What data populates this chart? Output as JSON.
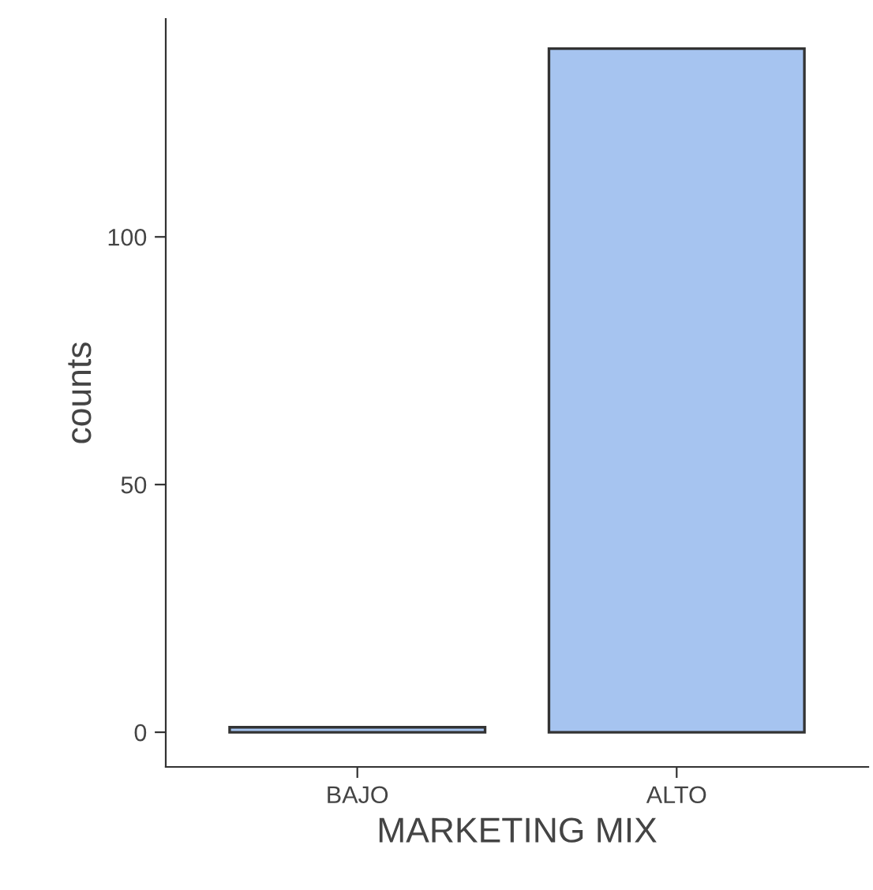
{
  "chart_data": {
    "type": "bar",
    "xlabel": "MARKETING MIX",
    "ylabel": "counts",
    "categories": [
      "BAJO",
      "ALTO"
    ],
    "series": [
      {
        "color": "#a6c4f0",
        "values": [
          1,
          138
        ]
      }
    ],
    "ylim": [
      -7,
      144
    ],
    "yticks": [
      0,
      50,
      100
    ],
    "grid": false,
    "legend": false
  }
}
